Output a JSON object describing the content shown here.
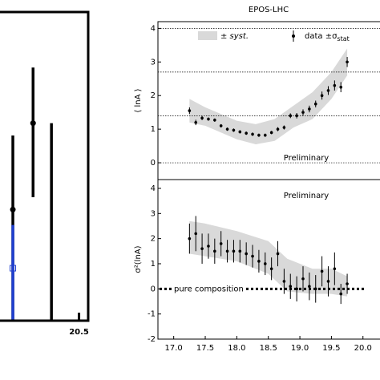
{
  "chart_data": [
    {
      "type": "errorbar",
      "xlim": [
        20.07,
        20.55
      ],
      "xticks": [
        20.5
      ],
      "ylim": [
        0,
        10
      ],
      "series": [
        {
          "color": "#000000",
          "x": [
            20.14,
            20.25,
            20.35
          ],
          "values": [
            3.6,
            6.4,
            null
          ],
          "low": [
            0,
            4.0,
            0
          ],
          "high": [
            6.0,
            8.2,
            6.4
          ]
        },
        {
          "color": "#1f3fd0",
          "x": [
            20.14
          ],
          "values": [
            1.7
          ],
          "low": [
            0
          ],
          "high": [
            3.1
          ]
        }
      ]
    },
    {
      "type": "errorbar",
      "title": "EPOS-LHC",
      "ylabel": "⟨ lnA ⟩",
      "annotation": "Preliminary",
      "xlim": [
        16.75,
        20.27
      ],
      "ylim": [
        -0.5,
        4.2
      ],
      "yticks": [
        0,
        1,
        2,
        3,
        4
      ],
      "hlines": [
        0,
        1.4,
        2.7,
        4
      ],
      "band": {
        "name": "± syst.",
        "color": "#d9d9d9",
        "x": [
          17.25,
          17.5,
          18.0,
          18.3,
          18.6,
          18.9,
          19.2,
          19.5,
          19.75
        ],
        "lower": [
          1.2,
          1.1,
          0.7,
          0.55,
          0.65,
          1.05,
          1.3,
          1.9,
          2.6
        ],
        "upper": [
          1.9,
          1.65,
          1.25,
          1.15,
          1.3,
          1.7,
          2.1,
          2.7,
          3.4
        ]
      },
      "series": [
        {
          "name": {
            "text": "data ±σ",
            "subscript": "stat"
          },
          "color": "#000000",
          "x": [
            17.25,
            17.35,
            17.45,
            17.55,
            17.65,
            17.75,
            17.85,
            17.95,
            18.05,
            18.15,
            18.25,
            18.35,
            18.45,
            18.55,
            18.65,
            18.75,
            18.85,
            18.95,
            19.05,
            19.15,
            19.25,
            19.35,
            19.45,
            19.55,
            19.65,
            19.75
          ],
          "values": [
            1.55,
            1.2,
            1.33,
            1.3,
            1.27,
            1.1,
            1.0,
            0.97,
            0.92,
            0.88,
            0.85,
            0.82,
            0.82,
            0.9,
            1.0,
            1.05,
            1.4,
            1.4,
            1.5,
            1.6,
            1.75,
            2.0,
            2.15,
            2.3,
            2.25,
            3.0
          ],
          "errors": [
            0.1,
            0.08,
            0.06,
            0.05,
            0.05,
            0.05,
            0.05,
            0.05,
            0.05,
            0.05,
            0.05,
            0.05,
            0.05,
            0.05,
            0.06,
            0.06,
            0.07,
            0.08,
            0.09,
            0.1,
            0.1,
            0.12,
            0.13,
            0.15,
            0.15,
            0.15
          ]
        }
      ]
    },
    {
      "type": "errorbar",
      "ylabel": "σ²(lnA)",
      "annotation": "Preliminary",
      "xlim": [
        16.75,
        20.27
      ],
      "ylim": [
        -2,
        4.35
      ],
      "yticks": [
        -2,
        -1,
        0,
        1,
        2,
        3,
        4
      ],
      "xticks": [
        {
          "value": 17.0,
          "label": "17.0"
        },
        {
          "value": 17.5,
          "label": "17.5"
        },
        {
          "value": 18.0,
          "label": "18.0"
        },
        {
          "value": 18.5,
          "label": "18.5"
        },
        {
          "value": 19.0,
          "label": "19.0"
        },
        {
          "value": 19.5,
          "label": "19.5"
        },
        {
          "value": 20.0,
          "label": "20.0"
        }
      ],
      "reference": {
        "value": 0,
        "label": "pure composition"
      },
      "band": {
        "color": "#d9d9d9",
        "x": [
          17.25,
          17.5,
          18.0,
          18.5,
          18.8,
          19.2,
          19.5,
          19.75
        ],
        "lower": [
          1.4,
          1.3,
          1.1,
          0.6,
          -0.1,
          -0.2,
          -0.2,
          -0.3
        ],
        "upper": [
          2.7,
          2.6,
          2.3,
          1.9,
          1.2,
          0.8,
          0.8,
          0.5
        ]
      },
      "series": [
        {
          "color": "#000000",
          "x": [
            17.25,
            17.35,
            17.45,
            17.55,
            17.65,
            17.75,
            17.85,
            17.95,
            18.05,
            18.15,
            18.25,
            18.35,
            18.45,
            18.55,
            18.65,
            18.75,
            18.85,
            18.95,
            19.05,
            19.15,
            19.25,
            19.35,
            19.45,
            19.55,
            19.65,
            19.75
          ],
          "values": [
            2.0,
            2.2,
            1.6,
            1.7,
            1.5,
            1.8,
            1.5,
            1.5,
            1.5,
            1.4,
            1.3,
            1.1,
            1.0,
            0.8,
            1.4,
            0.3,
            0.1,
            0.0,
            0.4,
            0.1,
            0.0,
            0.7,
            0.3,
            0.8,
            -0.2,
            0.2
          ],
          "errors": [
            0.6,
            0.7,
            0.6,
            0.5,
            0.5,
            0.5,
            0.45,
            0.45,
            0.45,
            0.45,
            0.45,
            0.45,
            0.45,
            0.45,
            0.5,
            0.5,
            0.5,
            0.5,
            0.5,
            0.55,
            0.55,
            0.6,
            0.6,
            0.65,
            0.4,
            0.4
          ]
        }
      ]
    }
  ]
}
